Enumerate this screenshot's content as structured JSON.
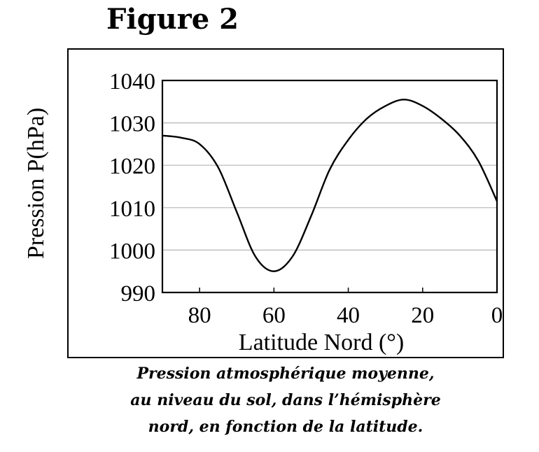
{
  "figure_label": "Figure 2",
  "caption": {
    "line1": "Pression atmosphérique moyenne,",
    "line2": "au niveau du sol, dans l’hémisphère",
    "line3": "nord, en fonction de la latitude."
  },
  "chart_data": {
    "type": "line",
    "title": "Figure 2",
    "xlabel": "Latitude Nord (°)",
    "ylabel": "Pression P(hPa)",
    "xlim": [
      90,
      0
    ],
    "ylim": [
      990,
      1040
    ],
    "x_reversed": true,
    "xticks": [
      80,
      60,
      40,
      20,
      0
    ],
    "xtick_labels": [
      "80",
      "60",
      "40",
      "20",
      "0"
    ],
    "yticks": [
      990,
      1000,
      1010,
      1020,
      1030,
      1040
    ],
    "ytick_labels": [
      "990",
      "1000",
      "1010",
      "1020",
      "1030",
      "1040"
    ],
    "grid": "horizontal",
    "series": [
      {
        "x": [
          90,
          85,
          80,
          75,
          70,
          65,
          60,
          55,
          50,
          45,
          40,
          35,
          30,
          25,
          20,
          15,
          10,
          5,
          0
        ],
        "y": [
          1027,
          1026.5,
          1025,
          1019.5,
          1009,
          998.5,
          995,
          998.5,
          1008,
          1019,
          1026,
          1031,
          1034,
          1035.5,
          1034,
          1031,
          1027,
          1021,
          1011.5
        ]
      }
    ]
  }
}
